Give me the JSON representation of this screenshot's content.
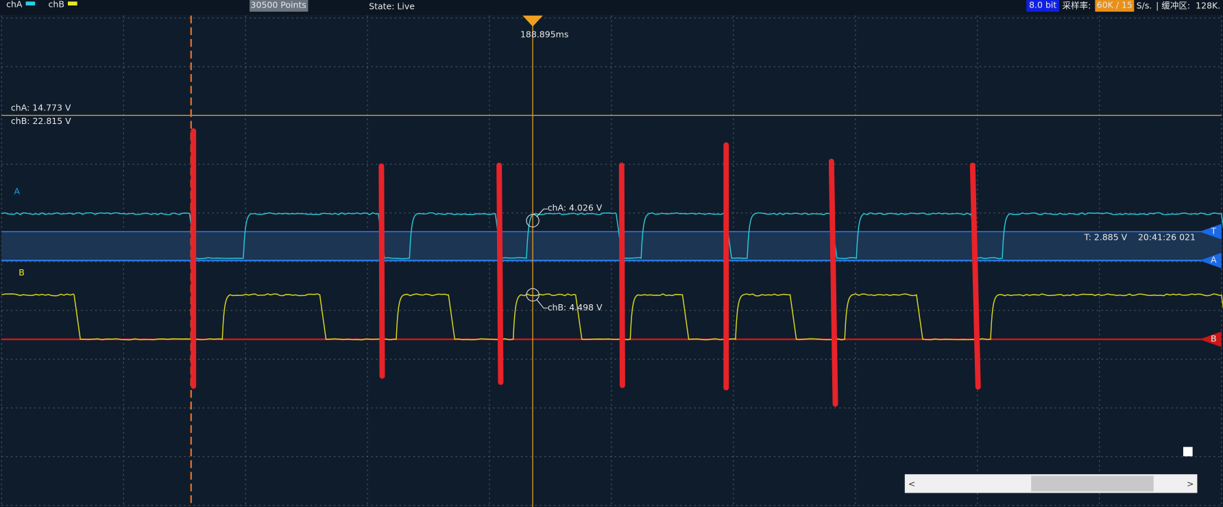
{
  "toolbar": {
    "channel_a": "chA",
    "channel_b": "chB",
    "points": "30500 Points",
    "state": "State: Live",
    "bit_depth": "8.0 bit",
    "sample_rate_label": "采样率:",
    "sample_rate": "60K / 15",
    "sample_rate_unit": "S/s.",
    "buffer_label": "| 缓冲区:",
    "buffer": "128K."
  },
  "cursor": {
    "time": "188.895ms",
    "level_a": "chA: 14.773 V",
    "level_b": "chB: 22.815 V",
    "probe_a": "chA: 4.026 V",
    "probe_b": "chB: 4.498 V"
  },
  "trigger": {
    "level": "T: 2.885 V",
    "timestamp": "20:41:26 021"
  },
  "annotations": {
    "a": "A",
    "b": "B"
  },
  "markers": {
    "t": "T",
    "a": "A",
    "b": "B"
  },
  "scrollbar": {
    "left": "<",
    "right": ">"
  }
}
